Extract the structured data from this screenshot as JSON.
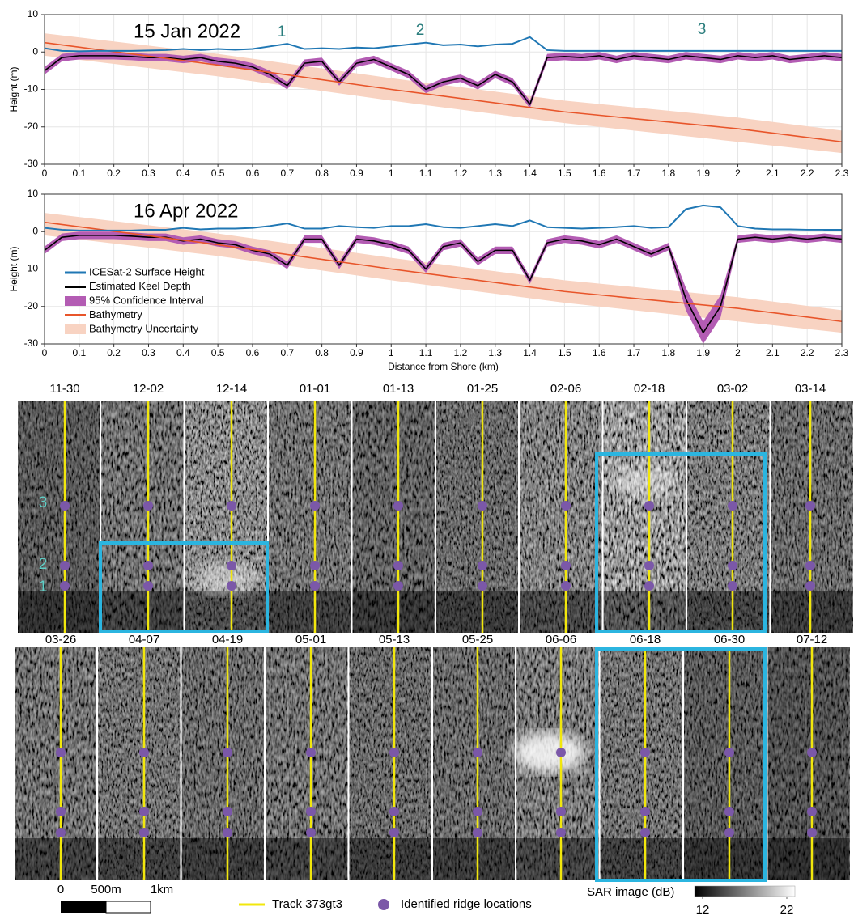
{
  "chart_data": [
    {
      "type": "line",
      "title": "15 Jan 2022",
      "ylabel": "Height (m)",
      "annotations": [
        "1",
        "2",
        "3"
      ],
      "x": [
        0,
        0.05,
        0.1,
        0.15,
        0.2,
        0.25,
        0.3,
        0.35,
        0.4,
        0.45,
        0.5,
        0.55,
        0.6,
        0.65,
        0.7,
        0.75,
        0.8,
        0.85,
        0.9,
        0.95,
        1,
        1.05,
        1.1,
        1.15,
        1.2,
        1.25,
        1.3,
        1.35,
        1.4,
        1.45,
        1.5,
        1.55,
        1.6,
        1.65,
        1.7,
        1.75,
        1.8,
        1.85,
        1.9,
        1.95,
        2,
        2.05,
        2.1,
        2.15,
        2.2,
        2.25,
        2.3
      ],
      "xlim": [
        0,
        2.3
      ],
      "ylim": [
        -30,
        10
      ],
      "xticks": [
        0,
        0.1,
        0.2,
        0.3,
        0.4,
        0.5,
        0.6,
        0.7,
        0.8,
        0.9,
        1,
        1.1,
        1.2,
        1.3,
        1.4,
        1.5,
        1.6,
        1.7,
        1.8,
        1.9,
        2,
        2.1,
        2.2,
        2.3
      ],
      "yticks": [
        -30,
        -20,
        -10,
        0,
        10
      ],
      "grid": true,
      "series": [
        {
          "name": "ICESat-2 Surface Height",
          "color": "#1f77b4",
          "style": "line",
          "values": [
            1,
            0.3,
            0.2,
            0.3,
            0.3,
            0.3,
            0.4,
            0.5,
            0.8,
            0.5,
            0.8,
            0.6,
            0.8,
            1.5,
            2.2,
            0.8,
            1,
            0.8,
            1.2,
            1,
            1.5,
            2,
            2.5,
            1.8,
            2,
            1.5,
            2,
            2.2,
            4,
            0.5,
            0.3,
            0.3,
            0.3,
            0.3,
            0.3,
            0.3,
            0.3,
            0.3,
            0.3,
            0.3,
            0.3,
            0.3,
            0.3,
            0.3,
            0.3,
            0.3,
            0.3
          ]
        },
        {
          "name": "Estimated Keel Depth",
          "color": "#000000",
          "style": "line",
          "values": [
            -5,
            -1.5,
            -1,
            -1,
            -1,
            -1.2,
            -1.5,
            -1.5,
            -2,
            -1.5,
            -2.5,
            -3,
            -4,
            -6,
            -9,
            -3,
            -2.5,
            -8,
            -3,
            -2,
            -4,
            -6,
            -10,
            -8,
            -7,
            -9,
            -6,
            -8,
            -14,
            -1.5,
            -1.2,
            -1.5,
            -1,
            -2,
            -1,
            -1.5,
            -2,
            -1,
            -1.5,
            -2,
            -1,
            -1.5,
            -1,
            -2,
            -1.5,
            -1,
            -1.5
          ]
        },
        {
          "name": "95% Confidence Interval",
          "color": "#b35cb3",
          "style": "band",
          "lower": [
            -6,
            -2.5,
            -2,
            -2,
            -2,
            -2.2,
            -2.5,
            -2.5,
            -3,
            -2.5,
            -3.5,
            -4,
            -5,
            -7,
            -10,
            -4,
            -3.5,
            -9,
            -4,
            -3,
            -5,
            -7,
            -11,
            -9,
            -8,
            -10,
            -7,
            -9,
            -15,
            -2.5,
            -2.2,
            -2.5,
            -2,
            -3,
            -2,
            -2.5,
            -3,
            -2,
            -2.5,
            -3,
            -2,
            -2.5,
            -2,
            -3,
            -2.5,
            -2,
            -2.5
          ],
          "upper": [
            -4,
            -0.5,
            0,
            0,
            0,
            -0.2,
            -0.5,
            -0.5,
            -1,
            -0.5,
            -1.5,
            -2,
            -3,
            -5,
            -8,
            -2,
            -1.5,
            -7,
            -2,
            -1,
            -3,
            -5,
            -9,
            -7,
            -6,
            -8,
            -5,
            -7,
            -13,
            -0.5,
            -0.2,
            -0.5,
            0,
            -1,
            0,
            -0.5,
            -1,
            0,
            -0.5,
            -1,
            0,
            -0.5,
            0,
            -1,
            -0.5,
            0,
            -0.5
          ]
        },
        {
          "name": "Bathymetry",
          "color": "#e8552a",
          "style": "line",
          "x": [
            0,
            0.5,
            1,
            1.5,
            2,
            2.3
          ],
          "values": [
            2.5,
            -3.5,
            -10,
            -16,
            -20.5,
            -24
          ]
        },
        {
          "name": "Bathymetry Uncertainty",
          "color": "#f8d3c2",
          "style": "band",
          "x": [
            0,
            0.5,
            1,
            1.5,
            2,
            2.3
          ],
          "lower": [
            -1,
            -6.5,
            -13,
            -19,
            -24,
            -27
          ],
          "upper": [
            5,
            -0.5,
            -7,
            -13,
            -17.5,
            -21
          ]
        }
      ]
    },
    {
      "type": "line",
      "title": "16 Apr 2022",
      "ylabel": "Height (m)",
      "xlabel": "Distance from Shore (km)",
      "legend": "lower left",
      "x": [
        0,
        0.05,
        0.1,
        0.15,
        0.2,
        0.25,
        0.3,
        0.35,
        0.4,
        0.45,
        0.5,
        0.55,
        0.6,
        0.65,
        0.7,
        0.75,
        0.8,
        0.85,
        0.9,
        0.95,
        1,
        1.05,
        1.1,
        1.15,
        1.2,
        1.25,
        1.3,
        1.35,
        1.4,
        1.45,
        1.5,
        1.55,
        1.6,
        1.65,
        1.7,
        1.75,
        1.8,
        1.85,
        1.9,
        1.95,
        2,
        2.05,
        2.1,
        2.15,
        2.2,
        2.25,
        2.3
      ],
      "xlim": [
        0,
        2.3
      ],
      "ylim": [
        -30,
        10
      ],
      "xticks": [
        0,
        0.1,
        0.2,
        0.3,
        0.4,
        0.5,
        0.6,
        0.7,
        0.8,
        0.9,
        1,
        1.1,
        1.2,
        1.3,
        1.4,
        1.5,
        1.6,
        1.7,
        1.8,
        1.9,
        2,
        2.1,
        2.2,
        2.3
      ],
      "yticks": [
        -30,
        -20,
        -10,
        0,
        10
      ],
      "grid": true,
      "series": [
        {
          "name": "ICESat-2 Surface Height",
          "color": "#1f77b4",
          "style": "line",
          "values": [
            1,
            0.5,
            0.3,
            0.3,
            0.3,
            0.3,
            0.5,
            0.5,
            1,
            0.6,
            0.8,
            0.8,
            1,
            1.5,
            2.2,
            0.8,
            0.8,
            1.5,
            1.2,
            1,
            1.5,
            1.5,
            2,
            1.2,
            1,
            1.5,
            2,
            1.5,
            3,
            1.2,
            1,
            0.8,
            1,
            1.2,
            1.5,
            1,
            1.2,
            6,
            7,
            6.5,
            1.5,
            0.8,
            0.6,
            0.6,
            0.5,
            0.5,
            0.5
          ]
        },
        {
          "name": "Estimated Keel Depth",
          "color": "#000000",
          "style": "line",
          "values": [
            -5,
            -1.5,
            -1,
            -1,
            -1,
            -1.2,
            -1.5,
            -1.5,
            -2.5,
            -2,
            -3,
            -3.5,
            -5,
            -6,
            -9,
            -2,
            -2,
            -9,
            -2,
            -2.5,
            -3.5,
            -5,
            -10,
            -4,
            -3,
            -8,
            -5,
            -5,
            -13,
            -3,
            -2,
            -2.5,
            -3.5,
            -2,
            -4,
            -6,
            -4,
            -18,
            -27,
            -20,
            -2,
            -1.5,
            -2,
            -1.5,
            -2,
            -1.5,
            -2
          ]
        },
        {
          "name": "95% Confidence Interval",
          "color": "#b35cb3",
          "style": "band",
          "lower": [
            -6,
            -2.5,
            -2,
            -2,
            -2,
            -2.2,
            -2.5,
            -2.5,
            -3.5,
            -3,
            -4,
            -4.5,
            -6,
            -7,
            -10,
            -3,
            -3,
            -10,
            -3,
            -3.5,
            -4.5,
            -6,
            -11,
            -5,
            -4,
            -9,
            -6,
            -6,
            -14,
            -4,
            -3,
            -3.5,
            -4.5,
            -3,
            -5,
            -7,
            -5,
            -21,
            -30,
            -23,
            -3,
            -2.5,
            -3,
            -2.5,
            -3,
            -2.5,
            -3
          ],
          "upper": [
            -4,
            -0.5,
            0,
            0,
            0,
            -0.2,
            -0.5,
            -0.5,
            -1.5,
            -1,
            -2,
            -2.5,
            -4,
            -5,
            -8,
            -1,
            -1,
            -8,
            -1,
            -1.5,
            -2.5,
            -4,
            -9,
            -3,
            -2,
            -7,
            -4,
            -4,
            -12,
            -2,
            -1,
            -1.5,
            -2.5,
            -1,
            -3,
            -5,
            -3,
            -15,
            -24,
            -17,
            -1,
            -0.5,
            -1,
            -0.5,
            -1,
            -0.5,
            -1
          ]
        },
        {
          "name": "Bathymetry",
          "color": "#e8552a",
          "style": "line",
          "x": [
            0,
            0.5,
            1,
            1.5,
            2,
            2.3
          ],
          "values": [
            2.5,
            -3.5,
            -10,
            -16,
            -20.5,
            -24
          ]
        },
        {
          "name": "Bathymetry Uncertainty",
          "color": "#f8d3c2",
          "style": "band",
          "x": [
            0,
            0.5,
            1,
            1.5,
            2,
            2.3
          ],
          "lower": [
            -1,
            -6.5,
            -13,
            -19,
            -24,
            -27
          ],
          "upper": [
            5,
            -0.5,
            -7,
            -13,
            -17.5,
            -21
          ]
        }
      ]
    }
  ],
  "sar_panel": {
    "dates_row1": [
      "11-30",
      "12-02",
      "12-14",
      "01-01",
      "01-13",
      "01-25",
      "02-06",
      "02-18",
      "03-02",
      "03-14"
    ],
    "dates_row2": [
      "03-26",
      "04-07",
      "04-19",
      "05-01",
      "05-13",
      "05-25",
      "06-06",
      "06-18",
      "06-30",
      "07-12"
    ],
    "ridge_labels": [
      "3",
      "2",
      "1"
    ],
    "scale_bar_labels": [
      "0",
      "500m",
      "1km"
    ],
    "legend": [
      "Track 373gt3",
      "Identified ridge locations"
    ],
    "colorbar": {
      "label": "SAR image (dB)",
      "ticks": [
        12,
        22
      ]
    }
  }
}
